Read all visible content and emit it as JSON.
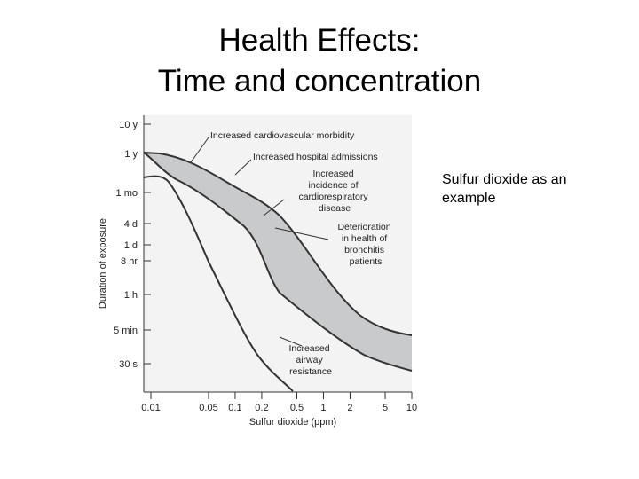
{
  "slide": {
    "title_line1": "Health Effects:",
    "title_line2": "Time and concentration",
    "caption": "Sulfur dioxide as an example"
  },
  "chart_data": {
    "type": "area",
    "xlabel": "Sulfur dioxide (ppm)",
    "ylabel": "Duration of exposure",
    "x_scale": "log",
    "x_ticks": [
      "0.01",
      "0.05",
      "0.1",
      "0.2",
      "0.5",
      "1",
      "2",
      "5",
      "10"
    ],
    "y_ticks": [
      "10 y",
      "1 y",
      "1 mo",
      "4 d",
      "1 d",
      "8 hr",
      "1 h",
      "5 min",
      "30 s"
    ],
    "grid": false,
    "bands": [
      {
        "name": "Deterioration in health of bronchitis patients",
        "upper_boundary": [
          {
            "x": 0.01,
            "y": "1 y"
          },
          {
            "x": 0.03,
            "y": "1 y"
          },
          {
            "x": 0.1,
            "y": "1 mo"
          },
          {
            "x": 0.5,
            "y": "4 d"
          },
          {
            "x": 2,
            "y": "8 hr"
          },
          {
            "x": 10,
            "y": "5 min"
          }
        ],
        "lower_boundary": [
          {
            "x": 0.01,
            "y": "1 y"
          },
          {
            "x": 0.03,
            "y": "1 mo"
          },
          {
            "x": 0.2,
            "y": "4 d"
          },
          {
            "x": 0.5,
            "y": "8 hr"
          },
          {
            "x": 2,
            "y": "1 h"
          },
          {
            "x": 10,
            "y": "30 s"
          }
        ]
      },
      {
        "name": "Increased airway resistance",
        "upper_boundary": [
          {
            "x": 0.01,
            "y": "1 mo"
          },
          {
            "x": 0.03,
            "y": "1 mo"
          },
          {
            "x": 0.1,
            "y": "4 d"
          },
          {
            "x": 0.2,
            "y": "8 hr"
          },
          {
            "x": 0.5,
            "y": "30 s"
          }
        ]
      }
    ],
    "annotations": [
      "Increased cardiovascular morbidity",
      "Increased hospital admissions",
      "Increased incidence of cardiorespiratory disease",
      "Deterioration in health of bronchitis patients",
      "Increased airway resistance"
    ],
    "colors": {
      "band_fill": "#c8cacb",
      "curve": "#333333"
    }
  }
}
